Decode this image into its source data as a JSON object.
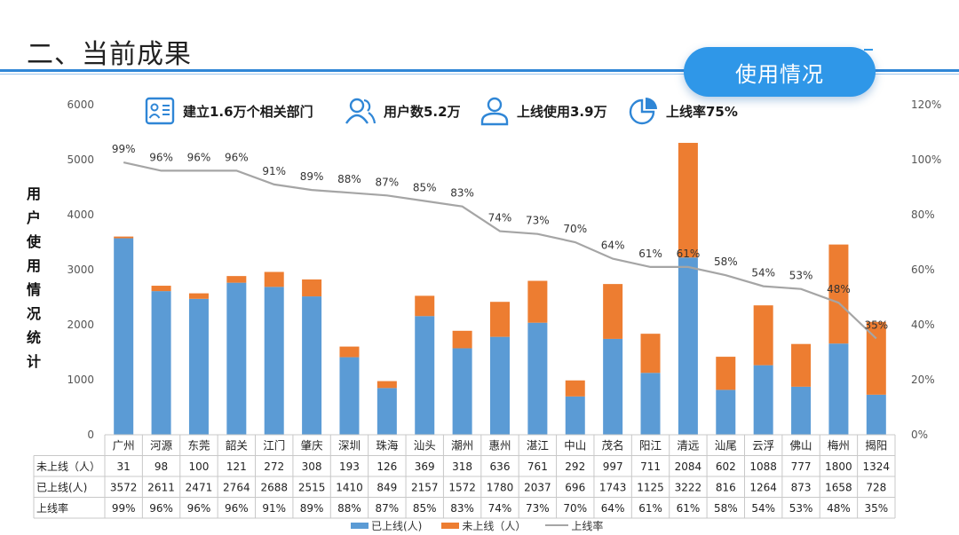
{
  "page": {
    "title": "二、当前成果",
    "badge": "使用情况",
    "side_label": "用户使用情况统计"
  },
  "kpis": [
    {
      "icon": "org-chart-icon",
      "text": "建立1.6万个相关部门"
    },
    {
      "icon": "users-icon",
      "text": "用户数5.2万"
    },
    {
      "icon": "user-icon",
      "text": "上线使用3.9万"
    },
    {
      "icon": "pie-icon",
      "text": "上线率75%"
    }
  ],
  "colors": {
    "online": "#5b9bd5",
    "offline": "#ed7d31",
    "rate": "#a5a5a5",
    "accent": "#2f97e8"
  },
  "chart_data": {
    "type": "bar",
    "stacked": true,
    "categories": [
      "广州",
      "河源",
      "东莞",
      "韶关",
      "江门",
      "肇庆",
      "深圳",
      "珠海",
      "汕头",
      "潮州",
      "惠州",
      "湛江",
      "中山",
      "茂名",
      "阳江",
      "清远",
      "汕尾",
      "云浮",
      "佛山",
      "梅州",
      "揭阳"
    ],
    "series": [
      {
        "name": "已上线(人)",
        "axis": "left",
        "values": [
          3572,
          2611,
          2471,
          2764,
          2688,
          2515,
          1410,
          849,
          2157,
          1572,
          1780,
          2037,
          696,
          1743,
          1125,
          3222,
          816,
          1264,
          873,
          1658,
          728
        ]
      },
      {
        "name": "未上线（人）",
        "axis": "left",
        "values": [
          31,
          98,
          100,
          121,
          272,
          308,
          193,
          126,
          369,
          318,
          636,
          761,
          292,
          997,
          711,
          2084,
          602,
          1088,
          777,
          1800,
          1324
        ]
      },
      {
        "name": "上线率",
        "type": "line",
        "axis": "right",
        "values": [
          99,
          96,
          96,
          96,
          91,
          89,
          88,
          87,
          85,
          83,
          74,
          73,
          70,
          64,
          61,
          61,
          58,
          54,
          53,
          48,
          35
        ]
      }
    ],
    "rate_labels": [
      "99%",
      "96%",
      "96%",
      "96%",
      "91%",
      "89%",
      "88%",
      "87%",
      "85%",
      "83%",
      "74%",
      "73%",
      "70%",
      "64%",
      "61%",
      "61%",
      "58%",
      "54%",
      "53%",
      "48%",
      "35%"
    ],
    "y_left": {
      "min": 0,
      "max": 6000,
      "ticks": [
        "0",
        "1000",
        "2000",
        "3000",
        "4000",
        "5000",
        "6000"
      ]
    },
    "y_right": {
      "min": 0,
      "max": 120,
      "ticks": [
        "0%",
        "20%",
        "40%",
        "60%",
        "80%",
        "100%",
        "120%"
      ]
    },
    "table_rows": [
      {
        "label": "未上线（人）",
        "values": [
          "31",
          "98",
          "100",
          "121",
          "272",
          "308",
          "193",
          "126",
          "369",
          "318",
          "636",
          "761",
          "292",
          "997",
          "711",
          "2084",
          "602",
          "1088",
          "777",
          "1800",
          "1324"
        ]
      },
      {
        "label": "已上线(人)",
        "values": [
          "3572",
          "2611",
          "2471",
          "2764",
          "2688",
          "2515",
          "1410",
          "849",
          "2157",
          "1572",
          "1780",
          "2037",
          "696",
          "1743",
          "1125",
          "3222",
          "816",
          "1264",
          "873",
          "1658",
          "728"
        ]
      },
      {
        "label": "上线率",
        "values": [
          "99%",
          "96%",
          "96%",
          "96%",
          "91%",
          "89%",
          "88%",
          "87%",
          "85%",
          "83%",
          "74%",
          "73%",
          "70%",
          "64%",
          "61%",
          "61%",
          "58%",
          "54%",
          "53%",
          "48%",
          "35%"
        ]
      }
    ],
    "legend": {
      "online": "已上线(人)",
      "offline": "未上线（人）",
      "rate": "上线率"
    },
    "legend_position": "bottom",
    "grid": false
  }
}
